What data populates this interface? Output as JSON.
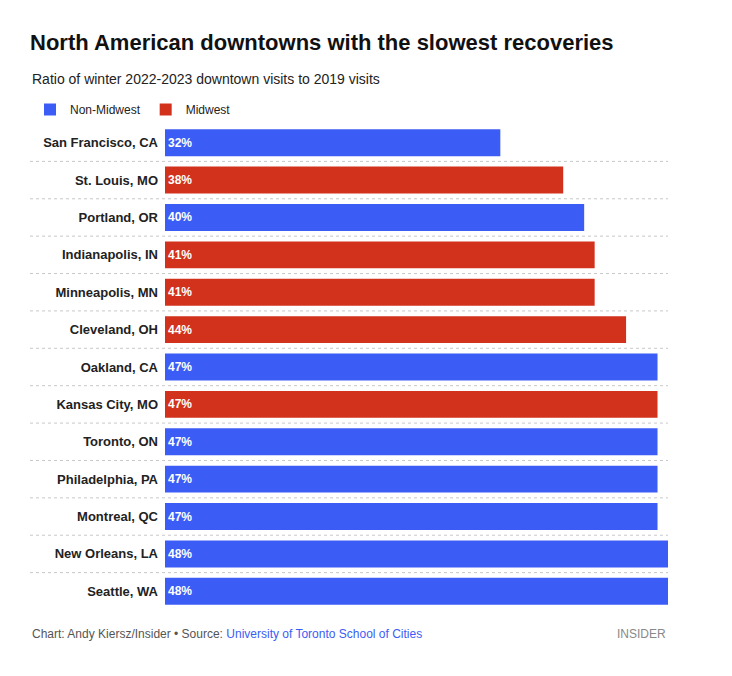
{
  "chart_data": {
    "type": "bar",
    "title": "North American downtowns with the slowest recoveries",
    "subtitle": "Ratio of winter 2022-2023 downtown visits to 2019 visits",
    "orientation": "horizontal",
    "categories": [
      "San Francisco, CA",
      "St. Louis, MO",
      "Portland, OR",
      "Indianapolis, IN",
      "Minneapolis, MN",
      "Cleveland, OH",
      "Oakland, CA",
      "Kansas City, MO",
      "Toronto, ON",
      "Philadelphia, PA",
      "Montreal, QC",
      "New Orleans, LA",
      "Seattle, WA"
    ],
    "series": [
      {
        "name": "Non-Midwest",
        "color": "#3c5cf6",
        "values": [
          32,
          null,
          40,
          null,
          null,
          null,
          47,
          null,
          47,
          47,
          47,
          48,
          48
        ],
        "value_labels": [
          "32%",
          null,
          "40%",
          null,
          null,
          null,
          "47%",
          null,
          "47%",
          "47%",
          "47%",
          "48%",
          "48%"
        ]
      },
      {
        "name": "Midwest",
        "color": "#d2321c",
        "values": [
          null,
          38,
          null,
          41,
          41,
          44,
          null,
          47,
          null,
          null,
          null,
          null,
          null
        ],
        "value_labels": [
          null,
          "38%",
          null,
          "41%",
          "41%",
          "44%",
          null,
          "47%",
          null,
          null,
          null,
          null,
          null
        ]
      }
    ],
    "xlim": [
      0,
      48
    ],
    "grid": false,
    "data_labels": true,
    "tick_labels": "y",
    "legend": "top-left",
    "credit": "Chart: Andy Kiersz/Insider • Source:",
    "source": "University of Toronto School of Cities",
    "logo": "INSIDER"
  }
}
